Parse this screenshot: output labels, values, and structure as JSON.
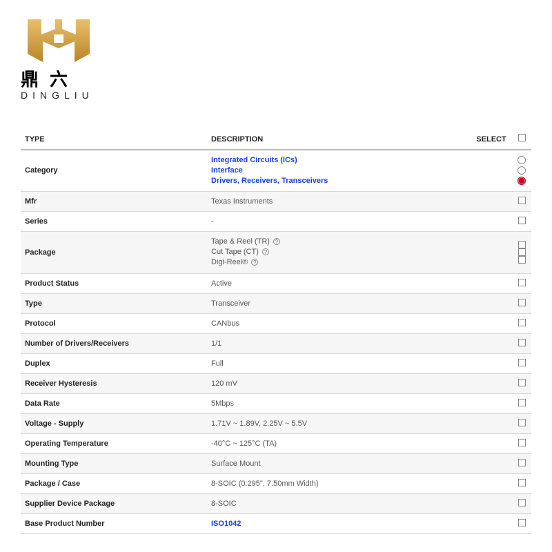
{
  "logo": {
    "chinese": "鼎六",
    "latin": "DINGLIU",
    "gold": "#d9a441",
    "gold_dark": "#b8842a"
  },
  "table": {
    "headers": {
      "type": "TYPE",
      "description": "DESCRIPTION",
      "select": "SELECT"
    },
    "rows": [
      {
        "key": "category",
        "alt": false,
        "type": "Category",
        "desc_links": [
          "Integrated Circuits (ICs)",
          "Interface",
          "Drivers, Receivers, Transceivers"
        ],
        "ctl": "radio3"
      },
      {
        "key": "mfr",
        "alt": true,
        "type": "Mfr",
        "desc": "Texas Instruments",
        "ctl": "checkbox"
      },
      {
        "key": "series",
        "alt": false,
        "type": "Series",
        "desc": "-",
        "ctl": "checkbox"
      },
      {
        "key": "package",
        "alt": true,
        "type": "Package",
        "desc_pkg": [
          "Tape & Reel (TR)",
          "Cut Tape (CT)",
          "Digi-Reel®"
        ],
        "ctl": "checkbox3"
      },
      {
        "key": "product_status",
        "alt": false,
        "type": "Product Status",
        "desc": "Active",
        "ctl": "checkbox"
      },
      {
        "key": "type2",
        "alt": true,
        "type": "Type",
        "desc": "Transceiver",
        "ctl": "checkbox"
      },
      {
        "key": "protocol",
        "alt": false,
        "type": "Protocol",
        "desc": "CANbus",
        "ctl": "checkbox"
      },
      {
        "key": "ndr",
        "alt": true,
        "type": "Number of Drivers/Receivers",
        "desc": "1/1",
        "ctl": "checkbox"
      },
      {
        "key": "duplex",
        "alt": false,
        "type": "Duplex",
        "desc": "Full",
        "ctl": "checkbox"
      },
      {
        "key": "rh",
        "alt": true,
        "type": "Receiver Hysteresis",
        "desc": "120 mV",
        "ctl": "checkbox"
      },
      {
        "key": "datarate",
        "alt": false,
        "type": "Data Rate",
        "desc": "5Mbps",
        "ctl": "checkbox"
      },
      {
        "key": "vsupply",
        "alt": true,
        "type": "Voltage - Supply",
        "desc": "1.71V ~ 1.89V, 2.25V ~ 5.5V",
        "ctl": "checkbox"
      },
      {
        "key": "optemp",
        "alt": false,
        "type": "Operating Temperature",
        "desc": "-40°C ~ 125°C (TA)",
        "ctl": "checkbox"
      },
      {
        "key": "mount",
        "alt": true,
        "type": "Mounting Type",
        "desc": "Surface Mount",
        "ctl": "checkbox"
      },
      {
        "key": "pkgcase",
        "alt": false,
        "type": "Package / Case",
        "desc": "8-SOIC (0.295\", 7.50mm Width)",
        "ctl": "checkbox"
      },
      {
        "key": "sdp",
        "alt": true,
        "type": "Supplier Device Package",
        "desc": "8-SOIC",
        "ctl": "checkbox"
      },
      {
        "key": "bpn",
        "alt": false,
        "type": "Base Product Number",
        "desc_link": "ISO1042",
        "ctl": "checkbox"
      }
    ]
  }
}
